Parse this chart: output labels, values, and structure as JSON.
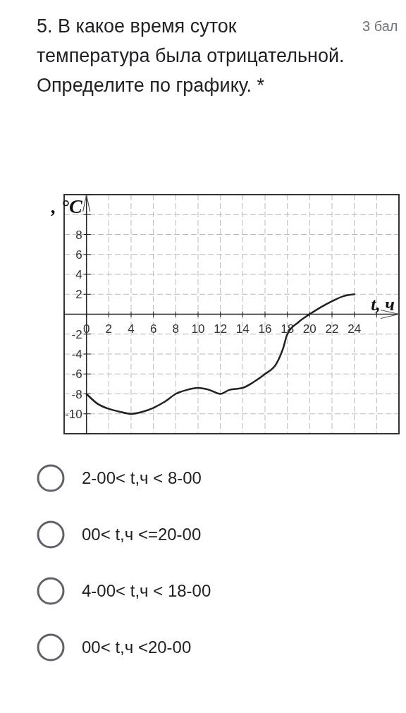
{
  "chart_data": {
    "type": "line",
    "title": "5. В какое время суток температура была отрицательной. Определите по графику. *",
    "annotations": [
      "3 бал",
      "2-00< t,ч < 8-00",
      "00< t,ч <=20-00",
      "4-00< t,ч < 18-00",
      "00< t,ч <20-00"
    ],
    "xlabel": "t, ч",
    "ylabel": ", °C",
    "xlim": [
      -2,
      28
    ],
    "ylim": [
      -12,
      12
    ],
    "xticks": [
      {
        "value": -2,
        "label": null
      },
      0,
      2,
      4,
      6,
      8,
      10,
      12,
      14,
      16,
      18,
      20,
      22,
      24,
      {
        "value": 26,
        "label": null
      }
    ],
    "yticks": [
      {
        "value": -12,
        "label": null
      },
      -10,
      -8,
      -6,
      -4,
      -2,
      {
        "value": 0,
        "label": null
      },
      2,
      4,
      6,
      8,
      {
        "value": 10,
        "label": null
      },
      {
        "value": 12,
        "label": null
      }
    ],
    "grid": true,
    "series": [
      {
        "color": "#222222",
        "x": [
          0,
          1,
          2,
          3,
          4,
          5,
          6,
          7,
          8,
          9,
          10,
          11,
          12,
          12.8,
          14,
          15,
          16,
          17,
          17.6,
          18,
          19,
          20,
          21,
          22,
          23,
          24
        ],
        "values": [
          -8,
          -9,
          -9.5,
          -9.8,
          -10,
          -9.8,
          -9.4,
          -8.8,
          -8,
          -7.6,
          -7.4,
          -7.6,
          -8,
          -7.6,
          -7.4,
          -6.8,
          -6,
          -5,
          -3.5,
          -2,
          -0.8,
          0,
          0.7,
          1.3,
          1.8,
          2
        ]
      }
    ]
  }
}
